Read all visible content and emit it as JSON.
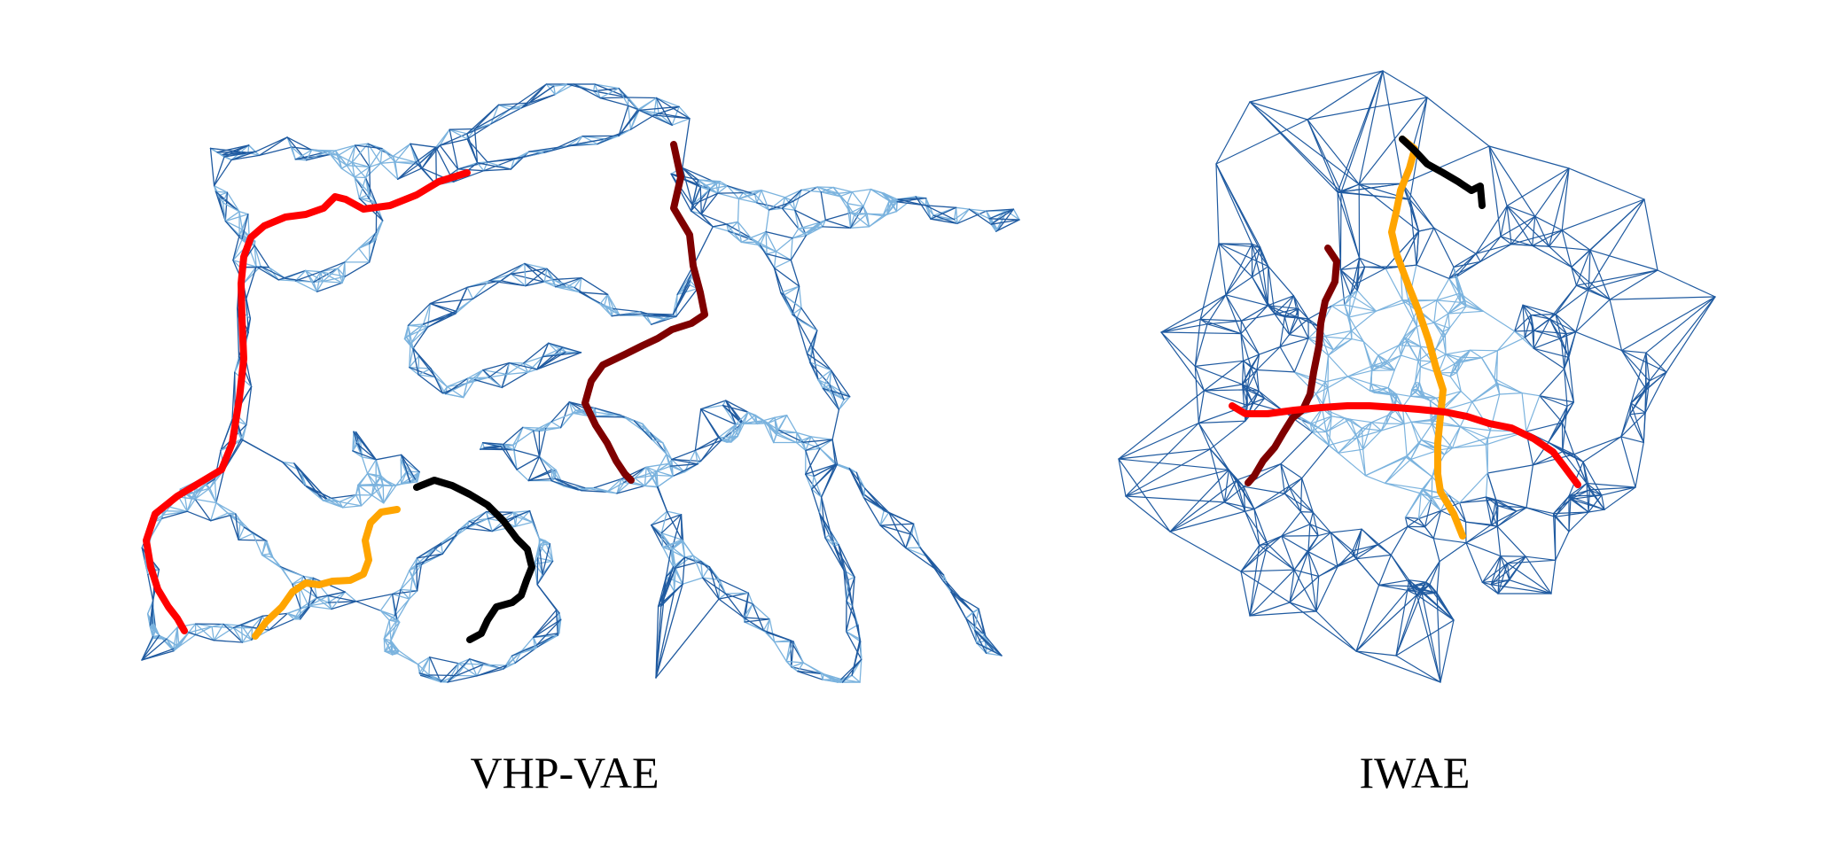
{
  "panels": [
    {
      "id": "vhp-vae",
      "label": "VHP-VAE"
    },
    {
      "id": "iwae",
      "label": "IWAE"
    }
  ],
  "colors": {
    "edge_dark": "#1f5aa0",
    "edge_light": "#7bb3de",
    "path_red": "#ff0000",
    "path_darkred": "#7f0000",
    "path_orange": "#ffa500",
    "path_black": "#000000"
  }
}
